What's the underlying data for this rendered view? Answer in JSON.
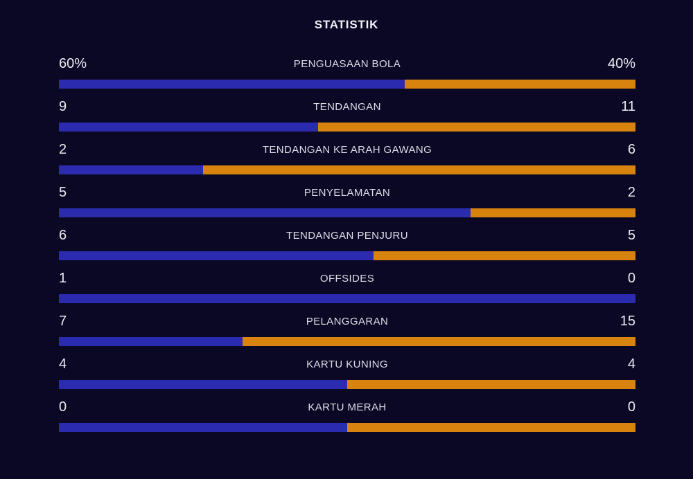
{
  "title": "STATISTIK",
  "colors": {
    "background": "#0a0824",
    "home_bar": "#2b2bb0",
    "away_bar": "#d9830f",
    "title_text": "#f2f1f6",
    "value_text": "#eceaf1",
    "label_text": "#dfdde8"
  },
  "chart_data": {
    "type": "bar",
    "orientation": "horizontal-split-pairs",
    "title": "STATISTIK",
    "categories": [
      "PENGUASAAN BOLA",
      "TENDANGAN",
      "TENDANGAN KE ARAH GAWANG",
      "PENYELAMATAN",
      "TENDANGAN PENJURU",
      "OFFSIDES",
      "PELANGGARAN",
      "KARTU KUNING",
      "KARTU MERAH"
    ],
    "series": [
      {
        "name": "home",
        "color": "#2b2bb0",
        "values": [
          60,
          9,
          2,
          5,
          6,
          1,
          7,
          4,
          0
        ]
      },
      {
        "name": "away",
        "color": "#d9830f",
        "values": [
          40,
          11,
          6,
          2,
          5,
          0,
          15,
          4,
          0
        ]
      }
    ],
    "legend": "none",
    "grid": false,
    "note": "each row bar is split left(blue)/right(orange) proportional to home/away values; equal split when both values are 0"
  },
  "rows": [
    {
      "label": "PENGUASAAN BOLA",
      "home_display": "60%",
      "away_display": "40%",
      "home": 60,
      "away": 40
    },
    {
      "label": "TENDANGAN",
      "home_display": "9",
      "away_display": "11",
      "home": 9,
      "away": 11
    },
    {
      "label": "TENDANGAN KE ARAH GAWANG",
      "home_display": "2",
      "away_display": "6",
      "home": 2,
      "away": 6
    },
    {
      "label": "PENYELAMATAN",
      "home_display": "5",
      "away_display": "2",
      "home": 5,
      "away": 2
    },
    {
      "label": "TENDANGAN PENJURU",
      "home_display": "6",
      "away_display": "5",
      "home": 6,
      "away": 5
    },
    {
      "label": "OFFSIDES",
      "home_display": "1",
      "away_display": "0",
      "home": 1,
      "away": 0
    },
    {
      "label": "PELANGGARAN",
      "home_display": "7",
      "away_display": "15",
      "home": 7,
      "away": 15
    },
    {
      "label": "KARTU KUNING",
      "home_display": "4",
      "away_display": "4",
      "home": 4,
      "away": 4
    },
    {
      "label": "KARTU MERAH",
      "home_display": "0",
      "away_display": "0",
      "home": 0,
      "away": 0
    }
  ]
}
